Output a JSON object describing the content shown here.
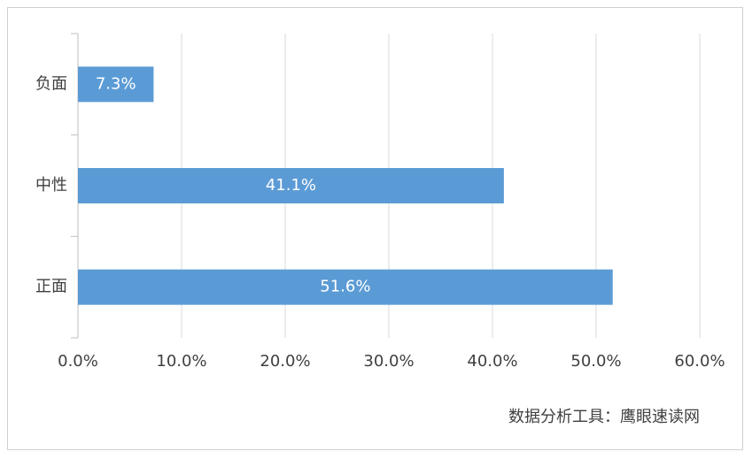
{
  "chart_data": {
    "type": "bar",
    "orientation": "horizontal",
    "categories": [
      "负面",
      "中性",
      "正面"
    ],
    "values": [
      7.3,
      41.1,
      51.6
    ],
    "value_labels": [
      "7.3%",
      "41.1%",
      "51.6%"
    ],
    "color": "#5b9bd5",
    "xlim": [
      0,
      60
    ],
    "xticks": [
      {
        "value": 0,
        "label": "0.0%"
      },
      {
        "value": 10,
        "label": "10.0%"
      },
      {
        "value": 20,
        "label": "20.0%"
      },
      {
        "value": 30,
        "label": "30.0%"
      },
      {
        "value": 40,
        "label": "40.0%"
      },
      {
        "value": 50,
        "label": "50.0%"
      },
      {
        "value": 60,
        "label": "60.0%"
      }
    ],
    "grid": true,
    "source": "数据分析工具：鹰眼速读网"
  }
}
